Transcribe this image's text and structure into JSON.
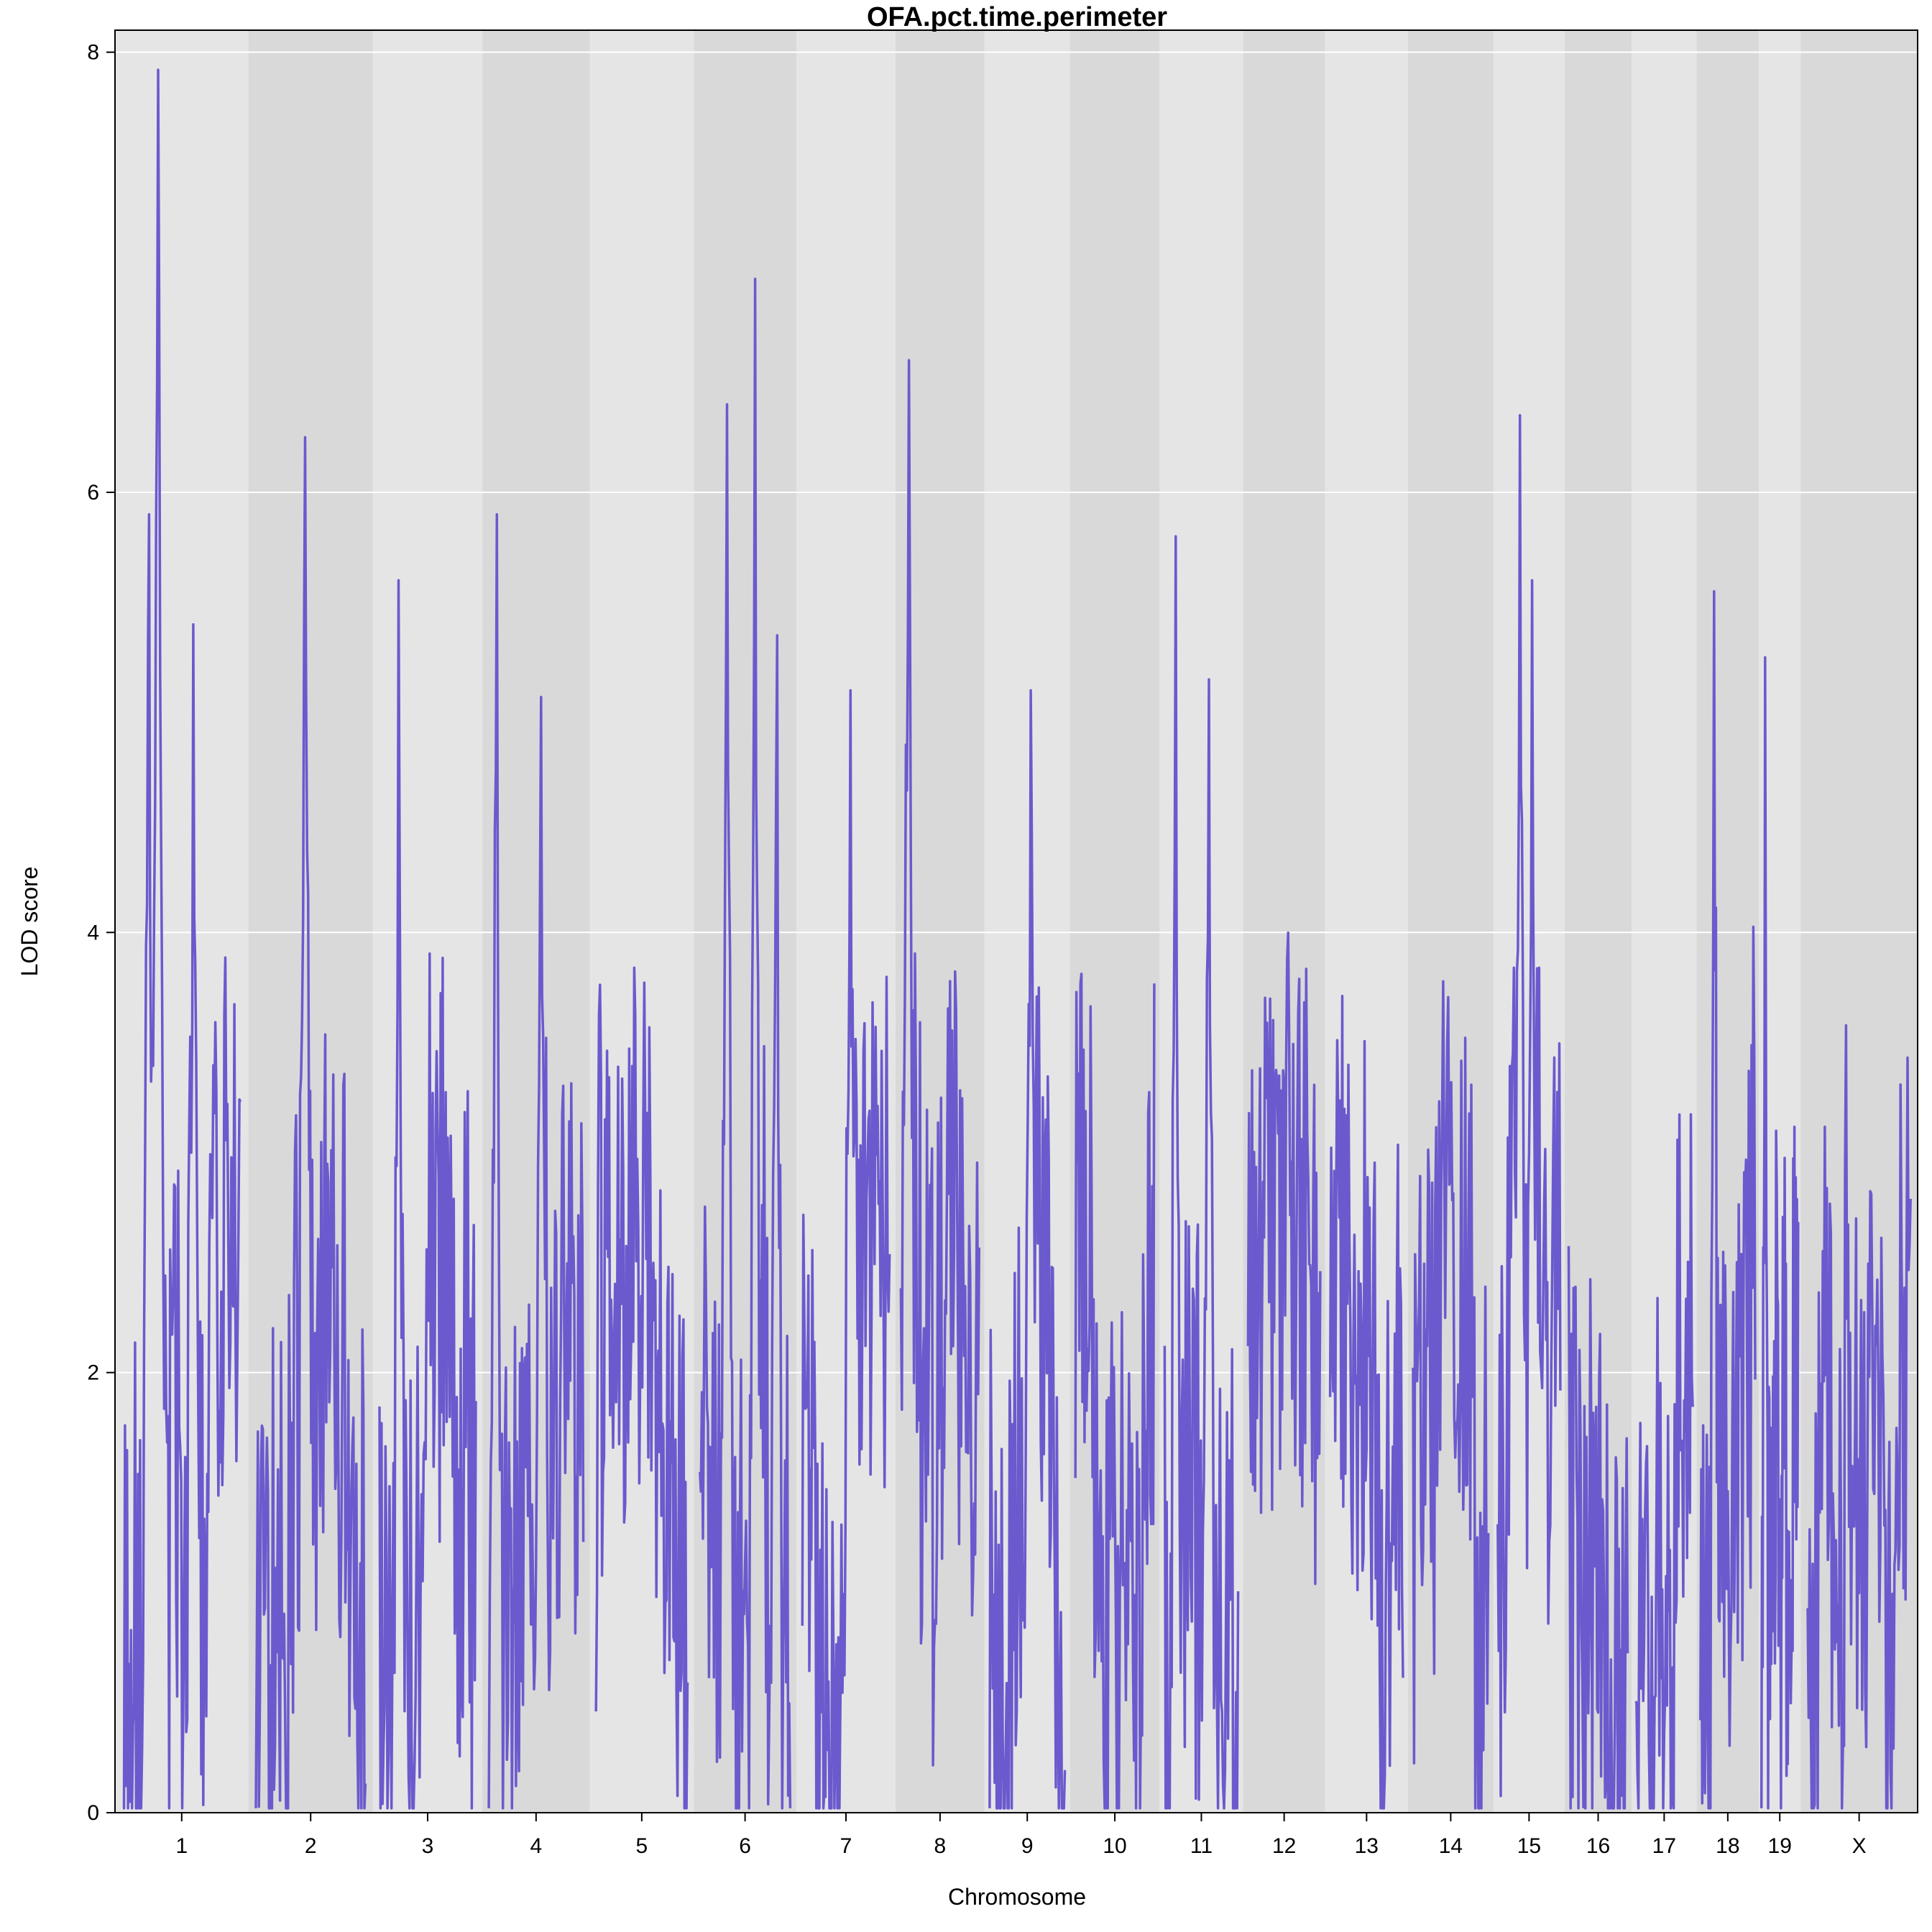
{
  "chart_data": {
    "type": "line",
    "title": "OFA.pct.time.perimeter",
    "xlabel": "Chromosome",
    "ylabel": "LOD score",
    "ylim": [
      0,
      8
    ],
    "yticks": [
      0,
      2,
      4,
      6,
      8
    ],
    "grid": true,
    "legend": "none",
    "colors": {
      "line": "#6A5ACD",
      "band_light": "#E5E5E5",
      "band_dark": "#D9D9D9",
      "grid": "#FFFFFF"
    },
    "chromosomes": [
      {
        "label": "1",
        "length": 195
      },
      {
        "label": "2",
        "length": 182
      },
      {
        "label": "3",
        "length": 160
      },
      {
        "label": "4",
        "length": 157
      },
      {
        "label": "5",
        "length": 152
      },
      {
        "label": "6",
        "length": 150
      },
      {
        "label": "7",
        "length": 145
      },
      {
        "label": "8",
        "length": 130
      },
      {
        "label": "9",
        "length": 125
      },
      {
        "label": "10",
        "length": 131
      },
      {
        "label": "11",
        "length": 122
      },
      {
        "label": "12",
        "length": 120
      },
      {
        "label": "13",
        "length": 121
      },
      {
        "label": "14",
        "length": 125
      },
      {
        "label": "15",
        "length": 104
      },
      {
        "label": "16",
        "length": 98
      },
      {
        "label": "17",
        "length": 95
      },
      {
        "label": "18",
        "length": 91
      },
      {
        "label": "19",
        "length": 61
      },
      {
        "label": "X",
        "length": 171
      }
    ],
    "peaks": [
      {
        "chr": "1",
        "pos": 0.3,
        "lod": 7.92
      },
      {
        "chr": "1",
        "pos": 0.22,
        "lod": 5.9
      },
      {
        "chr": "1",
        "pos": 0.6,
        "lod": 5.4
      },
      {
        "chr": "2",
        "pos": 0.45,
        "lod": 6.25
      },
      {
        "chr": "3",
        "pos": 0.2,
        "lod": 5.6
      },
      {
        "chr": "4",
        "pos": 0.08,
        "lod": 5.9
      },
      {
        "chr": "4",
        "pos": 0.55,
        "lod": 5.07
      },
      {
        "chr": "6",
        "pos": 0.3,
        "lod": 6.4
      },
      {
        "chr": "6",
        "pos": 0.61,
        "lod": 6.97
      },
      {
        "chr": "6",
        "pos": 0.85,
        "lod": 5.35
      },
      {
        "chr": "7",
        "pos": 0.55,
        "lod": 5.1
      },
      {
        "chr": "8",
        "pos": 0.1,
        "lod": 6.6
      },
      {
        "chr": "9",
        "pos": 0.55,
        "lod": 5.1
      },
      {
        "chr": "11",
        "pos": 0.15,
        "lod": 5.8
      },
      {
        "chr": "11",
        "pos": 0.6,
        "lod": 5.15
      },
      {
        "chr": "15",
        "pos": 0.35,
        "lod": 6.35
      },
      {
        "chr": "15",
        "pos": 0.55,
        "lod": 5.6
      },
      {
        "chr": "18",
        "pos": 0.25,
        "lod": 5.55
      },
      {
        "chr": "19",
        "pos": 0.1,
        "lod": 5.25
      }
    ],
    "typical_lod_range": [
      0.2,
      4.0
    ]
  }
}
